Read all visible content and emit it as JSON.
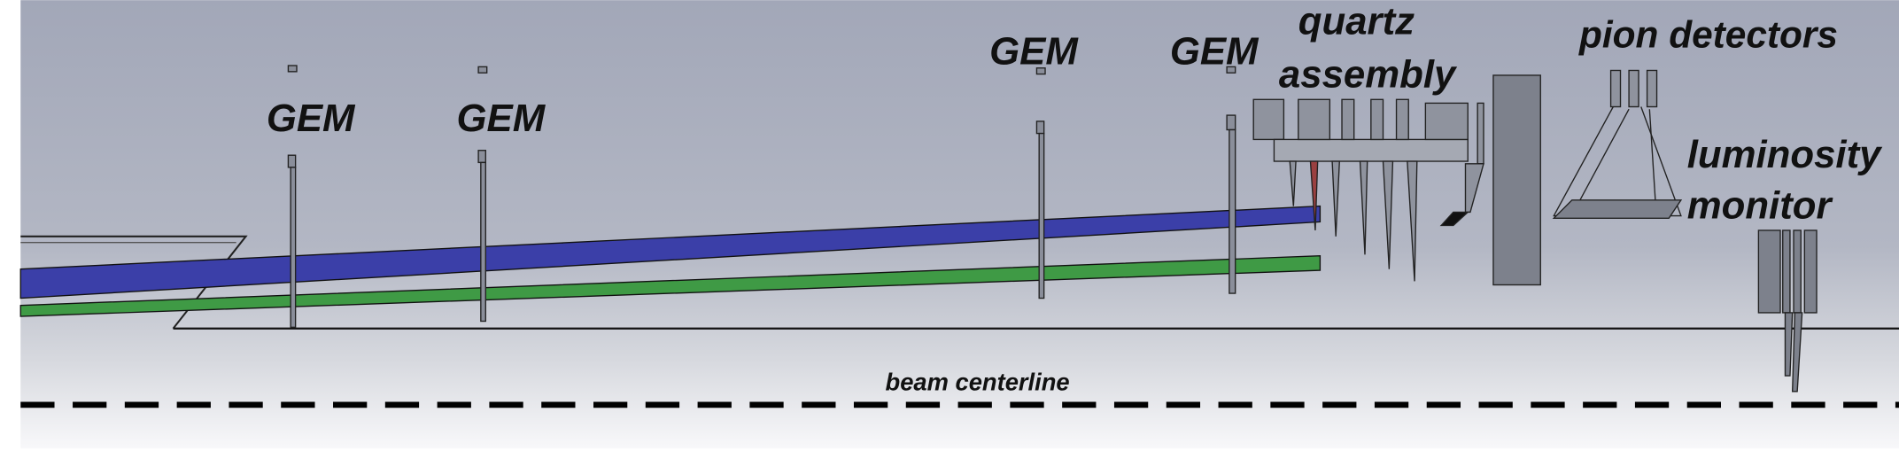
{
  "gem_labels": [
    "GEM",
    "GEM",
    "GEM",
    "GEM"
  ],
  "quartz_assembly": [
    "quartz",
    "assembly"
  ],
  "pion_detectors": "pion detectors",
  "luminosity_monitor": [
    "luminosity",
    "monitor"
  ],
  "beam_centerline": "beam centerline"
}
